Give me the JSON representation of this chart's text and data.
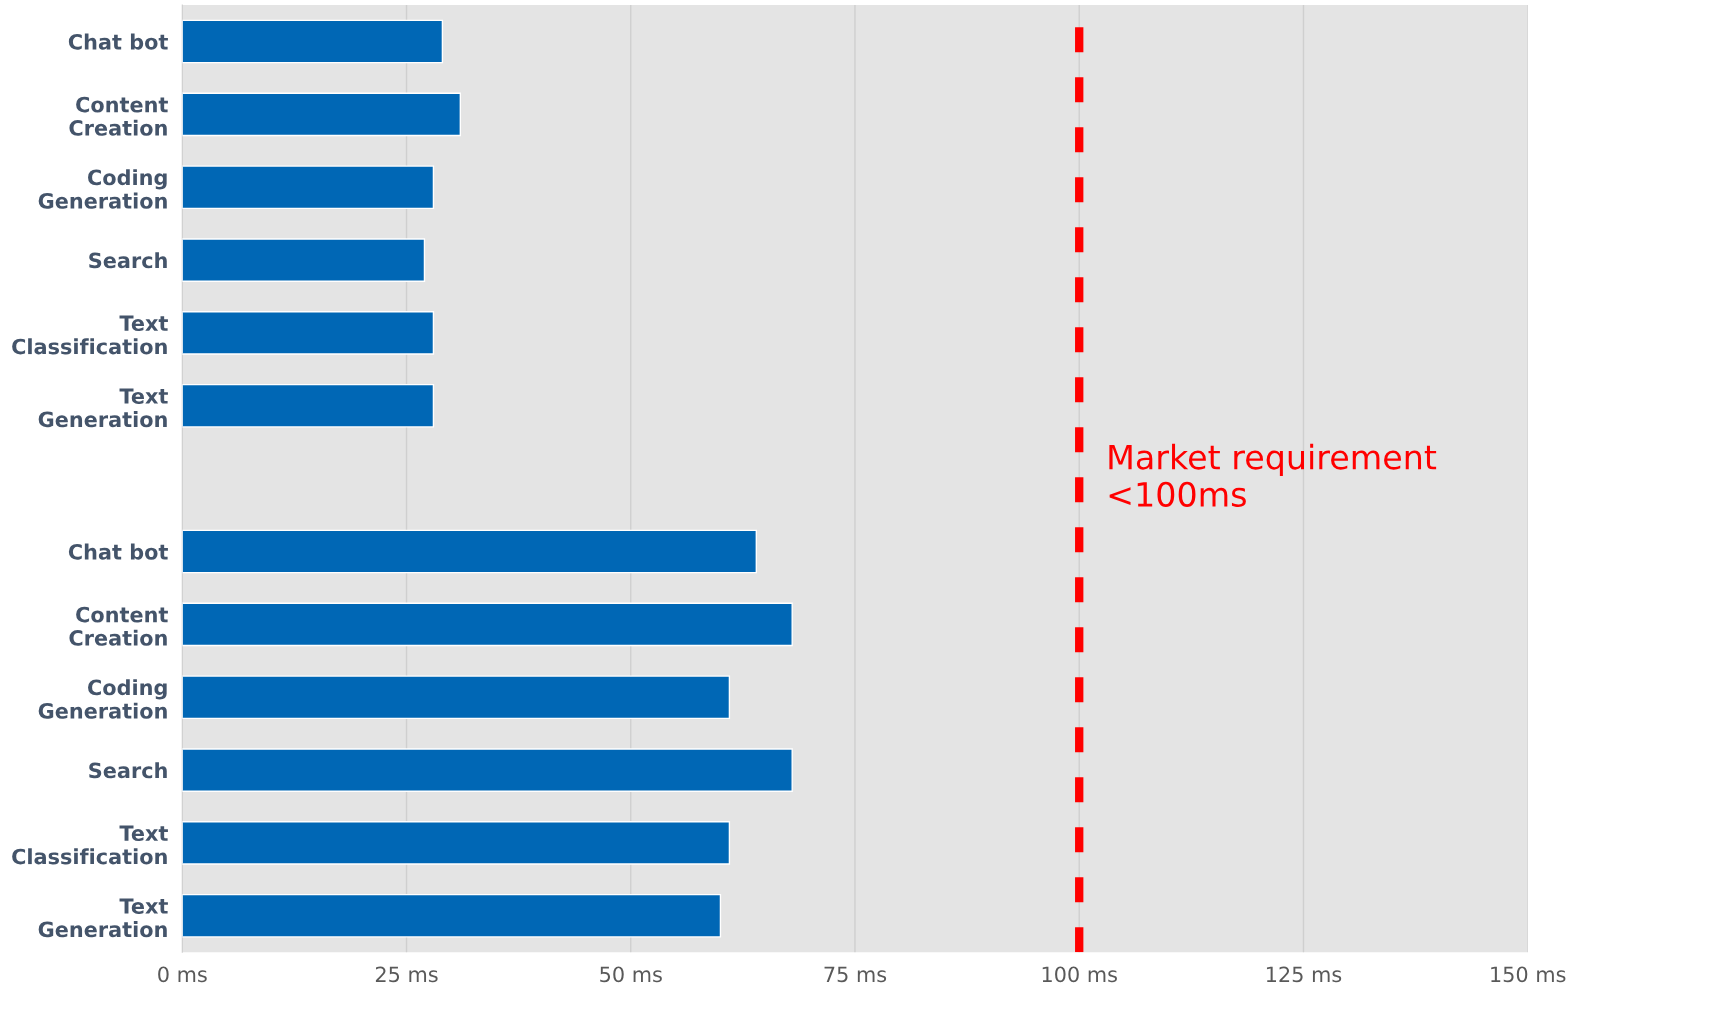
{
  "chart_data": {
    "type": "bar",
    "orientation": "horizontal",
    "categories": [
      "Chat bot",
      "Content\nCreation",
      "Coding\nGeneration",
      "Search",
      "Text\nClassification",
      "Text\nGeneration",
      null,
      "Chat bot",
      "Content\nCreation",
      "Coding\nGeneration",
      "Search",
      "Text\nClassification",
      "Text\nGeneration"
    ],
    "values": [
      29,
      31,
      28,
      27,
      28,
      28,
      null,
      64,
      68,
      61,
      68,
      61,
      60
    ],
    "color": "#0067b5",
    "xlim": [
      0,
      150
    ],
    "xticks": [
      {
        "value": 0,
        "label": "0 ms"
      },
      {
        "value": 25,
        "label": "25 ms"
      },
      {
        "value": 50,
        "label": "50 ms"
      },
      {
        "value": 75,
        "label": "75 ms"
      },
      {
        "value": 100,
        "label": "100 ms"
      },
      {
        "value": 125,
        "label": "125 ms"
      },
      {
        "value": 150,
        "label": "150 ms"
      }
    ],
    "grid": "x",
    "ref_lines": [
      {
        "axis": "x",
        "value": 100,
        "label": "Market requirement\n<100ms",
        "color": "#ff0000",
        "line_style": "dashed"
      }
    ]
  }
}
